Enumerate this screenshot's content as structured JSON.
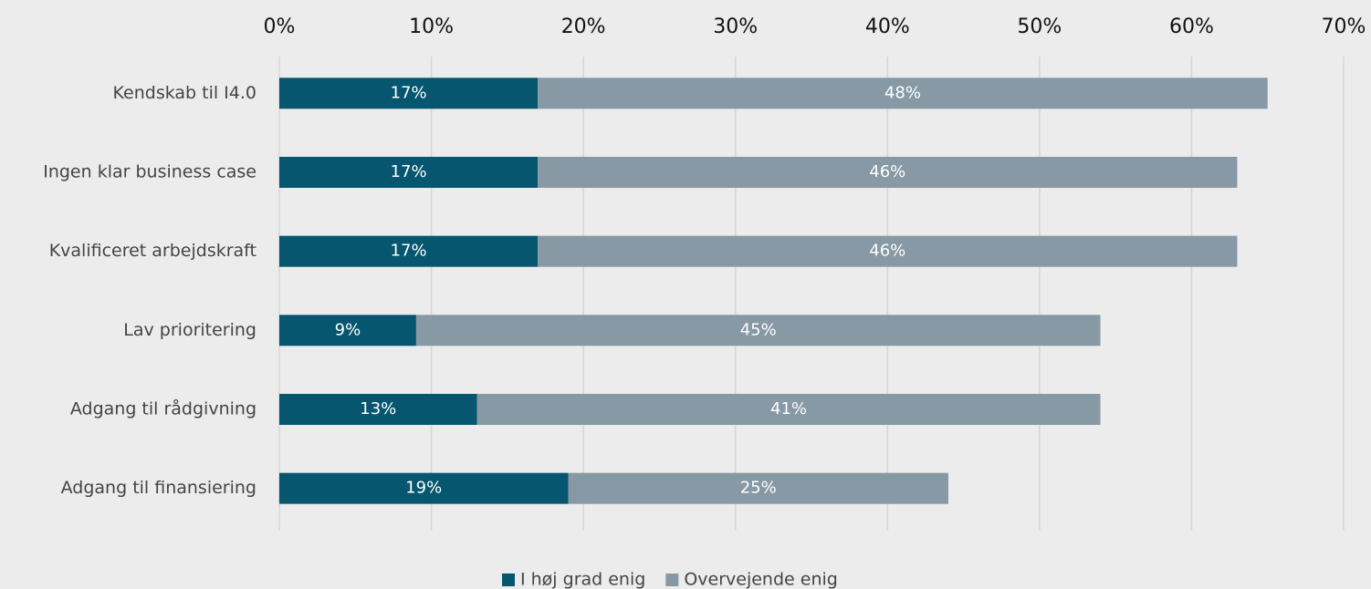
{
  "chart_data": {
    "type": "stacked-horizontal-bar",
    "categories": [
      "Kendskab til I4.0",
      "Ingen klar business case",
      "Kvalificeret arbejdskraft",
      "Lav prioritering",
      "Adgang til rådgivning",
      "Adgang til finansiering"
    ],
    "series": [
      {
        "name": "I høj grad enig",
        "color": "#05566e",
        "values": [
          17,
          17,
          17,
          9,
          13,
          19
        ],
        "value_labels": [
          "17%",
          "17%",
          "17%",
          "9%",
          "13%",
          "19%"
        ]
      },
      {
        "name": "Overvejende enig",
        "color": "#8699a4",
        "values": [
          48,
          46,
          46,
          45,
          41,
          25
        ],
        "value_labels": [
          "48%",
          "46%",
          "46%",
          "45%",
          "41%",
          "25%"
        ]
      }
    ],
    "xlim": [
      0,
      70
    ],
    "xticks": [
      {
        "value": 0,
        "label": "0%"
      },
      {
        "value": 10,
        "label": "10%"
      },
      {
        "value": 20,
        "label": "20%"
      },
      {
        "value": 30,
        "label": "30%"
      },
      {
        "value": 40,
        "label": "40%"
      },
      {
        "value": 50,
        "label": "50%"
      },
      {
        "value": 60,
        "label": "60%"
      },
      {
        "value": 70,
        "label": "70%"
      }
    ],
    "grid": true,
    "legend": "bottom"
  }
}
